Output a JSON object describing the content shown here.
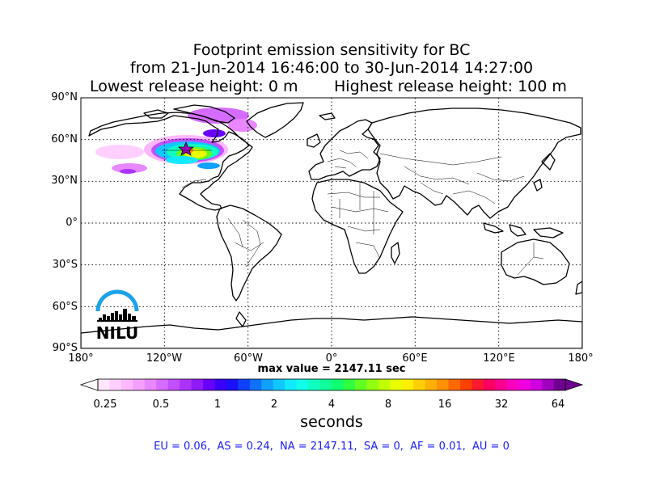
{
  "title": {
    "line1": "Footprint emission sensitivity for BC",
    "line2": "from 21-Jun-2014 16:46:00 to 30-Jun-2014 14:27:00",
    "lowest": "Lowest release height: 0 m",
    "highest": "Highest release height: 100 m"
  },
  "axes": {
    "lat_labels": [
      "90°N",
      "60°N",
      "30°N",
      "0°",
      "30°S",
      "60°S",
      "90°S"
    ],
    "lon_labels": [
      "180°",
      "120°W",
      "60°W",
      "0°",
      "60°E",
      "120°E",
      "180°"
    ]
  },
  "max_value": "max value = 2147.11 sec",
  "colorbar": {
    "ticks": [
      "0.25",
      "0.5",
      "1",
      "2",
      "4",
      "8",
      "16",
      "32",
      "64"
    ],
    "units": "seconds"
  },
  "regions": "EU = 0.06,  AS = 0.24,  NA = 2147.11,  SA = 0,  AF = 0.01,  AU = 0",
  "logo": {
    "text": "NILU",
    "color": "#1aa3e8"
  },
  "colors": {
    "palette": [
      "#ffe8ff",
      "#ffd0ff",
      "#ffb8ff",
      "#f5a0ff",
      "#e887ff",
      "#d66cff",
      "#c24fff",
      "#ac33ff",
      "#901aff",
      "#6a00ff",
      "#3a00ff",
      "#1a10ff",
      "#1040ff",
      "#1070ff",
      "#10a0ff",
      "#10c8ff",
      "#10eaff",
      "#10ffe8",
      "#10ffc0",
      "#10ff98",
      "#10ff70",
      "#30ff40",
      "#60ff20",
      "#90ff10",
      "#c0ff00",
      "#e8ff00",
      "#ffef00",
      "#ffd000",
      "#ffb000",
      "#ff9000",
      "#ff6a00",
      "#ff4000",
      "#ff1a30",
      "#ff0060",
      "#ff0090",
      "#ff00c0",
      "#f000e0",
      "#d000e0",
      "#a000c0",
      "#700090"
    ]
  }
}
